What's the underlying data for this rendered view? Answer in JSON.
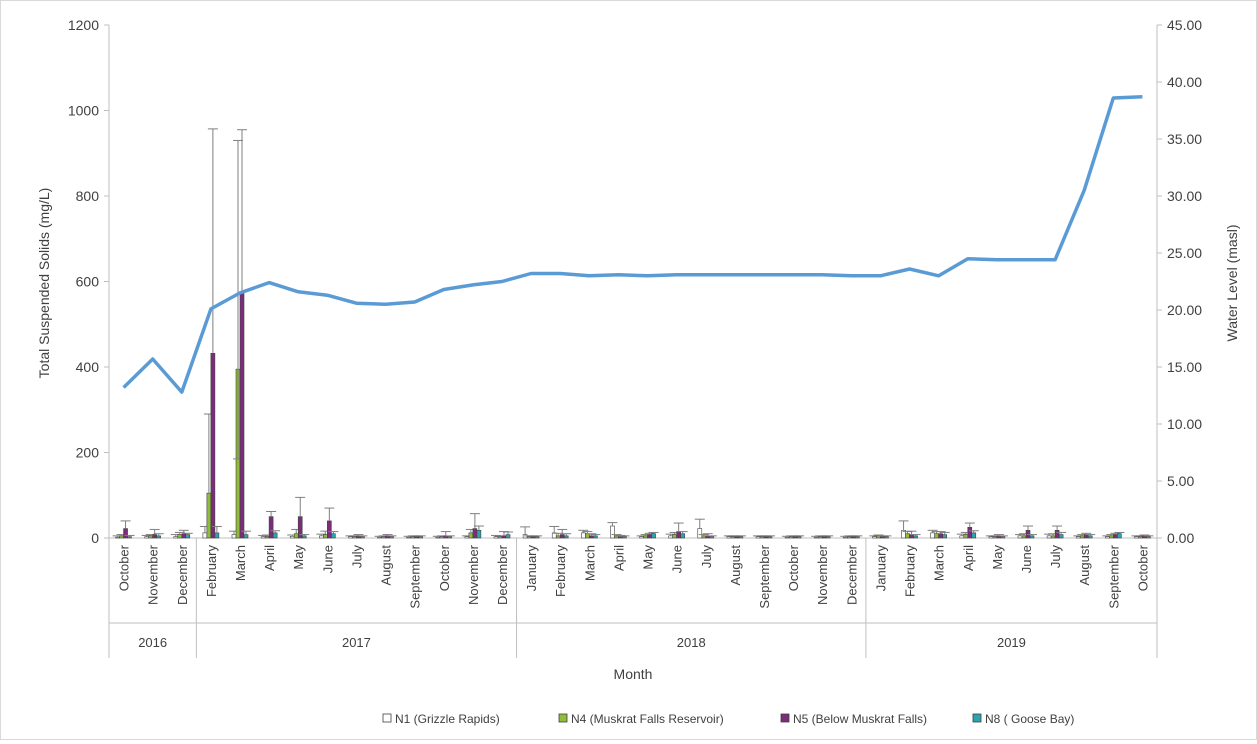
{
  "chart_data": {
    "type": "bar",
    "xlabel": "Month",
    "ylabel": "Total Suspended Solids (mg/L)",
    "y2label": "Water Level (masl)",
    "ylim": [
      0,
      1200
    ],
    "yticks": [
      0,
      200,
      400,
      600,
      800,
      1000,
      1200
    ],
    "y2lim": [
      0,
      45
    ],
    "y2ticks": [
      "0.00",
      "5.00",
      "10.00",
      "15.00",
      "20.00",
      "25.00",
      "30.00",
      "35.00",
      "40.00",
      "45.00"
    ],
    "categories": [
      "October",
      "November",
      "December",
      "February",
      "March",
      "April",
      "May",
      "June",
      "July",
      "August",
      "September",
      "October",
      "November",
      "December",
      "January",
      "February",
      "March",
      "April",
      "May",
      "June",
      "July",
      "August",
      "September",
      "October",
      "November",
      "December",
      "January",
      "February",
      "March",
      "April",
      "May",
      "June",
      "July",
      "August",
      "September",
      "October"
    ],
    "year_groups": [
      {
        "label": "2016",
        "start": 0,
        "end": 2
      },
      {
        "label": "2017",
        "start": 3,
        "end": 13
      },
      {
        "label": "2018",
        "start": 14,
        "end": 25
      },
      {
        "label": "2019",
        "start": 26,
        "end": 35
      }
    ],
    "series": [
      {
        "name": "N1 (Grizzle Rapids)",
        "color": "#ffffff",
        "values": [
          2,
          3,
          3,
          12,
          8,
          3,
          4,
          5,
          3,
          2,
          2,
          2,
          3,
          3,
          8,
          12,
          12,
          28,
          3,
          5,
          22,
          3,
          3,
          2,
          2,
          2,
          3,
          18,
          12,
          5,
          3,
          5,
          5,
          3,
          3,
          3
        ],
        "errors": [
          3,
          3,
          5,
          15,
          8,
          3,
          3,
          4,
          2,
          2,
          2,
          2,
          2,
          3,
          18,
          15,
          6,
          8,
          2,
          4,
          22,
          2,
          2,
          2,
          2,
          2,
          2,
          22,
          6,
          4,
          2,
          3,
          4,
          2,
          2,
          2
        ]
      },
      {
        "name": "N4 (Muskrat Falls Reservoir)",
        "color": "#8fbc3b",
        "values": [
          5,
          5,
          8,
          105,
          395,
          4,
          10,
          8,
          3,
          3,
          3,
          3,
          12,
          3,
          3,
          5,
          10,
          5,
          5,
          8,
          5,
          3,
          3,
          3,
          3,
          3,
          5,
          10,
          10,
          8,
          3,
          5,
          5,
          5,
          5,
          3
        ],
        "errors": [
          3,
          3,
          5,
          185,
          535,
          3,
          10,
          8,
          2,
          2,
          2,
          2,
          8,
          2,
          2,
          6,
          5,
          3,
          3,
          5,
          3,
          2,
          2,
          2,
          2,
          2,
          2,
          5,
          5,
          5,
          2,
          5,
          5,
          3,
          3,
          2
        ],
        "error_low": [
          0,
          0,
          0,
          0,
          210,
          0,
          0,
          0,
          0,
          0,
          0,
          0,
          0,
          0,
          0,
          0,
          0,
          0,
          0,
          0,
          0,
          0,
          0,
          0,
          0,
          0,
          0,
          0,
          0,
          0,
          0,
          0,
          0,
          0,
          0,
          0
        ]
      },
      {
        "name": "N5 (Below Muskrat Falls)",
        "color": "#7b2d7b",
        "values": [
          22,
          8,
          10,
          432,
          575,
          50,
          50,
          40,
          5,
          5,
          3,
          5,
          22,
          5,
          3,
          8,
          5,
          3,
          8,
          15,
          5,
          3,
          3,
          3,
          3,
          3,
          3,
          8,
          10,
          25,
          5,
          18,
          18,
          8,
          8,
          5
        ],
        "errors": [
          18,
          12,
          8,
          525,
          380,
          12,
          45,
          30,
          3,
          3,
          2,
          10,
          35,
          10,
          2,
          12,
          5,
          3,
          3,
          20,
          5,
          2,
          2,
          2,
          2,
          2,
          2,
          8,
          5,
          10,
          3,
          10,
          10,
          3,
          3,
          2
        ]
      },
      {
        "name": "N8 ( Goose Bay)",
        "color": "#2ba3b1",
        "values": [
          3,
          5,
          8,
          12,
          8,
          12,
          5,
          10,
          3,
          3,
          3,
          3,
          18,
          8,
          3,
          5,
          5,
          3,
          10,
          10,
          3,
          3,
          3,
          3,
          3,
          3,
          3,
          5,
          8,
          12,
          3,
          5,
          8,
          5,
          10,
          3
        ],
        "errors": [
          3,
          5,
          3,
          15,
          8,
          5,
          3,
          5,
          2,
          2,
          2,
          2,
          10,
          6,
          2,
          5,
          3,
          2,
          3,
          5,
          2,
          2,
          2,
          2,
          2,
          2,
          2,
          3,
          5,
          5,
          2,
          3,
          5,
          3,
          3,
          2
        ]
      }
    ],
    "line": {
      "name": "Water Level (masl)",
      "color": "#5b9bd5",
      "values": [
        13.2,
        15.7,
        12.8,
        20.1,
        21.5,
        22.4,
        21.6,
        21.3,
        20.6,
        20.5,
        20.7,
        21.8,
        22.2,
        22.5,
        23.2,
        23.2,
        23.0,
        23.1,
        23.0,
        23.1,
        23.1,
        23.1,
        23.1,
        23.1,
        23.1,
        23.0,
        23.0,
        23.6,
        23.0,
        24.5,
        24.4,
        24.4,
        24.4,
        30.5,
        38.6,
        38.7
      ]
    },
    "legend_position": "bottom",
    "grid": false
  }
}
